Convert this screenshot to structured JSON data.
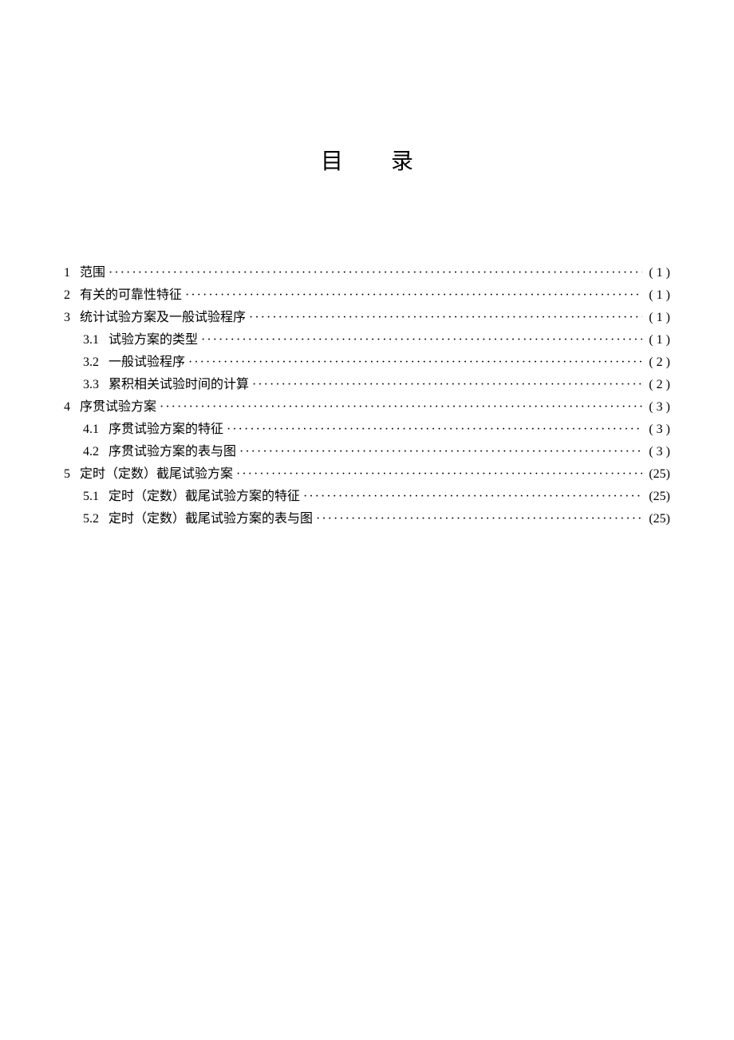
{
  "title": "目录",
  "entries": [
    {
      "level": 1,
      "num": "1",
      "label": "范围",
      "page": "( 1 )"
    },
    {
      "level": 1,
      "num": "2",
      "label": "有关的可靠性特征",
      "page": "( 1 )"
    },
    {
      "level": 1,
      "num": "3",
      "label": "统计试验方案及一般试验程序",
      "page": "( 1 )"
    },
    {
      "level": 2,
      "num": "3.1",
      "label": "试验方案的类型",
      "page": "( 1 )"
    },
    {
      "level": 2,
      "num": "3.2",
      "label": "一般试验程序",
      "page": "( 2 )"
    },
    {
      "level": 2,
      "num": "3.3",
      "label": "累积相关试验时间的计算",
      "page": "( 2 )"
    },
    {
      "level": 1,
      "num": "4",
      "label": "序贯试验方案",
      "page": "( 3 )"
    },
    {
      "level": 2,
      "num": "4.1",
      "label": "序贯试验方案的特征",
      "page": "( 3 )"
    },
    {
      "level": 2,
      "num": "4.2",
      "label": "序贯试验方案的表与图",
      "page": "( 3 )"
    },
    {
      "level": 1,
      "num": "5",
      "label": "定时（定数）截尾试验方案",
      "page": "(25)"
    },
    {
      "level": 2,
      "num": "5.1",
      "label": "定时（定数）截尾试验方案的特征",
      "page": "(25)"
    },
    {
      "level": 2,
      "num": "5.2",
      "label": "定时（定数）截尾试验方案的表与图",
      "page": "(25)"
    }
  ]
}
